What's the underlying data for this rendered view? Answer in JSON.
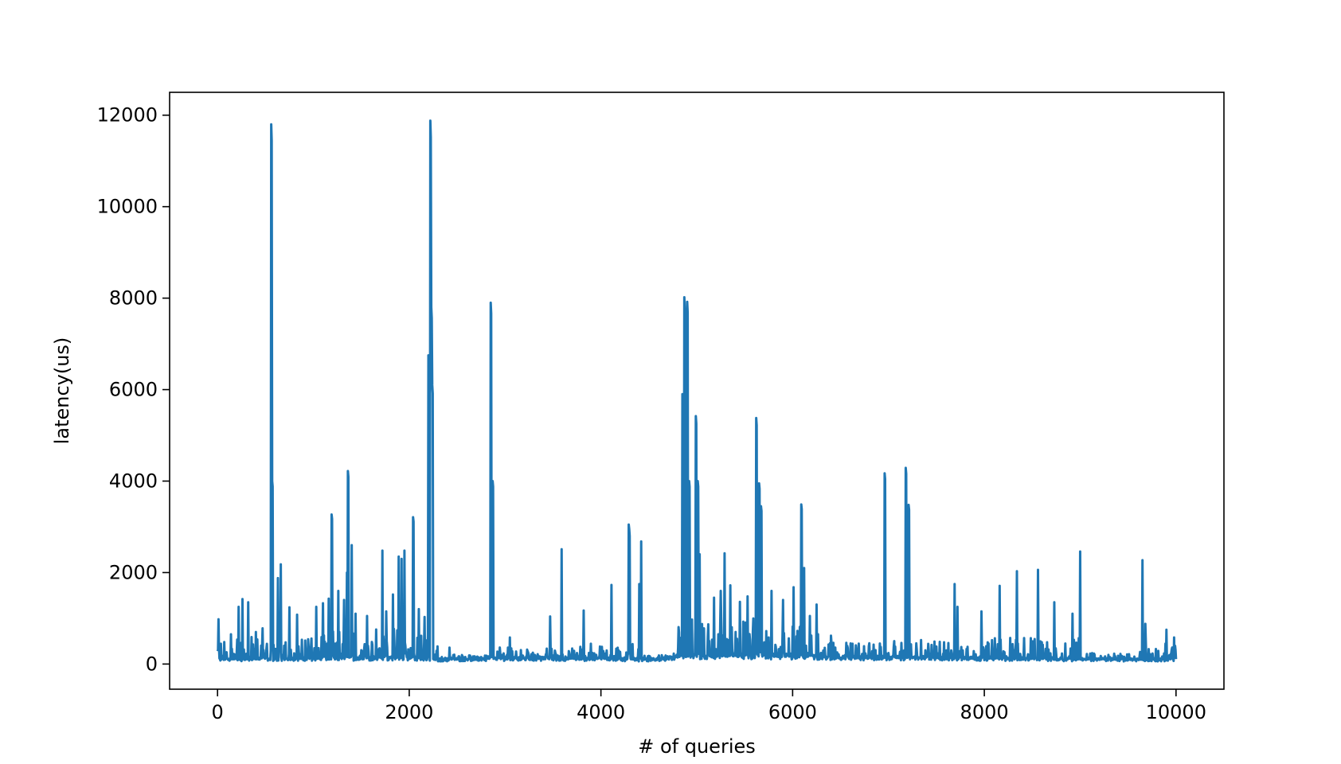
{
  "chart_data": {
    "type": "line",
    "title": "",
    "xlabel": "# of queries",
    "ylabel": "latency(us)",
    "xlim": [
      -500,
      10500
    ],
    "ylim": [
      -550,
      12500
    ],
    "xticks": [
      0,
      2000,
      4000,
      6000,
      8000,
      10000
    ],
    "yticks": [
      0,
      2000,
      4000,
      6000,
      8000,
      10000,
      12000
    ],
    "grid": false,
    "legend": "none",
    "series": [
      {
        "color": "#1f77b4",
        "baseline": [
          [
            0,
            100
          ],
          [
            1000,
            120
          ],
          [
            2000,
            130
          ],
          [
            2300,
            90
          ],
          [
            2700,
            110
          ],
          [
            3200,
            120
          ],
          [
            4000,
            110
          ],
          [
            4600,
            90
          ],
          [
            4800,
            150
          ],
          [
            5500,
            180
          ],
          [
            6200,
            150
          ],
          [
            7000,
            130
          ],
          [
            8000,
            120
          ],
          [
            9000,
            100
          ],
          [
            9500,
            90
          ],
          [
            10000,
            100
          ]
        ],
        "noise_bands": [
          [
            0,
            1000,
            500
          ],
          [
            1000,
            2300,
            700
          ],
          [
            2300,
            2850,
            120
          ],
          [
            2850,
            3600,
            250
          ],
          [
            3600,
            4450,
            350
          ],
          [
            4450,
            4800,
            100
          ],
          [
            4800,
            5600,
            900
          ],
          [
            5600,
            6300,
            700
          ],
          [
            6300,
            7000,
            350
          ],
          [
            7000,
            8000,
            400
          ],
          [
            8000,
            9050,
            500
          ],
          [
            9050,
            9600,
            150
          ],
          [
            9600,
            10000,
            400
          ]
        ],
        "spikes": [
          [
            10,
            980
          ],
          [
            70,
            480
          ],
          [
            140,
            650
          ],
          [
            220,
            1250
          ],
          [
            260,
            1420
          ],
          [
            320,
            1350
          ],
          [
            400,
            700
          ],
          [
            470,
            780
          ],
          [
            560,
            11800
          ],
          [
            570,
            4000
          ],
          [
            630,
            1880
          ],
          [
            660,
            2180
          ],
          [
            750,
            1240
          ],
          [
            830,
            1080
          ],
          [
            1030,
            1250
          ],
          [
            1100,
            1330
          ],
          [
            1160,
            1430
          ],
          [
            1190,
            3270
          ],
          [
            1260,
            1600
          ],
          [
            1320,
            1400
          ],
          [
            1350,
            2000
          ],
          [
            1360,
            4220
          ],
          [
            1400,
            2600
          ],
          [
            1440,
            1100
          ],
          [
            1560,
            1050
          ],
          [
            1720,
            2480
          ],
          [
            1760,
            1150
          ],
          [
            1830,
            1520
          ],
          [
            1890,
            2350
          ],
          [
            1920,
            2300
          ],
          [
            1950,
            2480
          ],
          [
            2040,
            3210
          ],
          [
            2100,
            1200
          ],
          [
            2160,
            1030
          ],
          [
            2200,
            6750
          ],
          [
            2220,
            11880
          ],
          [
            2230,
            7800
          ],
          [
            2240,
            6100
          ],
          [
            2420,
            360
          ],
          [
            2850,
            7900
          ],
          [
            2870,
            4000
          ],
          [
            3050,
            580
          ],
          [
            3470,
            1040
          ],
          [
            3590,
            2510
          ],
          [
            3820,
            1170
          ],
          [
            4110,
            1730
          ],
          [
            4290,
            3050
          ],
          [
            4300,
            2800
          ],
          [
            4400,
            1750
          ],
          [
            4420,
            2680
          ],
          [
            4850,
            5900
          ],
          [
            4870,
            8020
          ],
          [
            4900,
            7920
          ],
          [
            4920,
            4000
          ],
          [
            4990,
            5420
          ],
          [
            5010,
            4000
          ],
          [
            5030,
            2400
          ],
          [
            5180,
            1450
          ],
          [
            5250,
            1600
          ],
          [
            5290,
            2420
          ],
          [
            5350,
            1720
          ],
          [
            5450,
            1360
          ],
          [
            5530,
            1480
          ],
          [
            5620,
            5380
          ],
          [
            5650,
            3950
          ],
          [
            5670,
            3450
          ],
          [
            5780,
            1600
          ],
          [
            5900,
            1400
          ],
          [
            6010,
            1680
          ],
          [
            6090,
            3490
          ],
          [
            6120,
            2100
          ],
          [
            6180,
            1050
          ],
          [
            6250,
            1300
          ],
          [
            6400,
            620
          ],
          [
            6960,
            4170
          ],
          [
            7180,
            4290
          ],
          [
            7210,
            3480
          ],
          [
            7690,
            1750
          ],
          [
            7720,
            1250
          ],
          [
            7970,
            1150
          ],
          [
            8160,
            1710
          ],
          [
            8340,
            2030
          ],
          [
            8560,
            2060
          ],
          [
            8730,
            1350
          ],
          [
            8920,
            1100
          ],
          [
            9000,
            2460
          ],
          [
            9650,
            2270
          ],
          [
            9680,
            880
          ],
          [
            9900,
            750
          ],
          [
            9980,
            580
          ]
        ]
      }
    ]
  }
}
